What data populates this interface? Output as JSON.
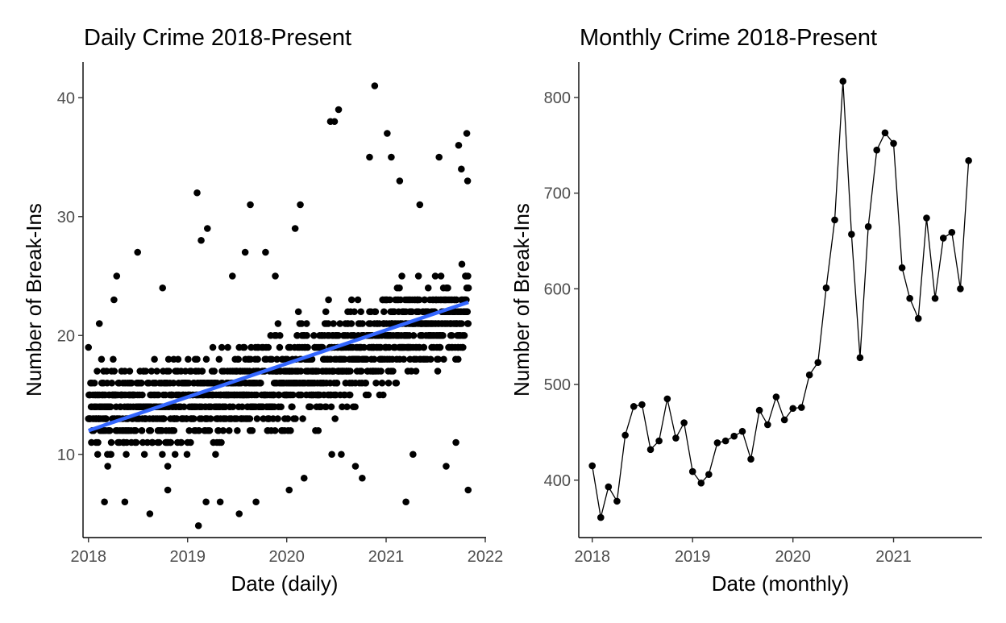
{
  "chart_data": [
    {
      "type": "scatter",
      "title": "Daily Crime 2018-Present",
      "xlabel": "Date (daily)",
      "ylabel": "Number of Break-Ins",
      "xlim": [
        "2017-12-12",
        "2022-01-04"
      ],
      "ylim": [
        3,
        43
      ],
      "x_ticks": [
        "2018",
        "2019",
        "2020",
        "2021",
        "2022"
      ],
      "y_ticks": [
        10,
        20,
        30,
        40
      ],
      "grid": false,
      "legend": "none",
      "point_color": "#000000",
      "trend_color": "#3366ff",
      "trend": {
        "x": [
          "2018-01-01",
          "2021-10-31"
        ],
        "y": [
          12.0,
          22.8
        ]
      },
      "series": [
        {
          "period_start": "2018-01-01",
          "period_end": "2021-10-31",
          "typical_low": [
            10,
            10,
            11,
            12,
            16,
            18
          ],
          "typical_high": [
            17,
            18,
            19,
            22,
            24,
            26
          ],
          "points": [
            [
              "2018-01-01",
              19
            ],
            [
              "2018-02-10",
              21
            ],
            [
              "2018-03-01",
              6
            ],
            [
              "2018-04-05",
              23
            ],
            [
              "2018-04-15",
              25
            ],
            [
              "2018-05-15",
              6
            ],
            [
              "2018-07-01",
              27
            ],
            [
              "2018-08-15",
              5
            ],
            [
              "2018-10-01",
              24
            ],
            [
              "2018-10-20",
              7
            ],
            [
              "2019-02-05",
              32
            ],
            [
              "2019-02-10",
              4
            ],
            [
              "2019-02-20",
              28
            ],
            [
              "2019-03-15",
              29
            ],
            [
              "2019-03-10",
              6
            ],
            [
              "2019-05-01",
              6
            ],
            [
              "2019-06-15",
              25
            ],
            [
              "2019-07-10",
              5
            ],
            [
              "2019-08-20",
              31
            ],
            [
              "2019-08-01",
              27
            ],
            [
              "2019-09-10",
              6
            ],
            [
              "2019-10-15",
              27
            ],
            [
              "2019-11-20",
              25
            ],
            [
              "2020-01-10",
              7
            ],
            [
              "2020-02-01",
              29
            ],
            [
              "2020-02-20",
              31
            ],
            [
              "2020-03-05",
              8
            ],
            [
              "2020-06-10",
              38
            ],
            [
              "2020-06-25",
              38
            ],
            [
              "2020-07-10",
              39
            ],
            [
              "2020-07-20",
              10
            ],
            [
              "2020-06-15",
              10
            ],
            [
              "2020-09-10",
              9
            ],
            [
              "2020-10-05",
              8
            ],
            [
              "2020-11-01",
              35
            ],
            [
              "2020-11-20",
              41
            ],
            [
              "2021-01-05",
              37
            ],
            [
              "2021-01-20",
              35
            ],
            [
              "2021-02-20",
              33
            ],
            [
              "2021-03-15",
              6
            ],
            [
              "2021-04-10",
              10
            ],
            [
              "2021-05-05",
              31
            ],
            [
              "2021-07-15",
              35
            ],
            [
              "2021-08-10",
              9
            ],
            [
              "2021-09-25",
              36
            ],
            [
              "2021-10-05",
              34
            ],
            [
              "2021-10-25",
              37
            ],
            [
              "2021-10-28",
              33
            ],
            [
              "2021-10-30",
              7
            ],
            [
              "2021-09-15",
              11
            ]
          ]
        }
      ]
    },
    {
      "type": "line",
      "title": "Monthly Crime 2018-Present",
      "xlabel": "Date (monthly)",
      "ylabel": "Number of Break-Ins",
      "xlim": [
        "2017-11-13",
        "2021-11-18"
      ],
      "ylim": [
        340,
        837
      ],
      "x_ticks": [
        "2018",
        "2019",
        "2020",
        "2021"
      ],
      "y_ticks": [
        400,
        500,
        600,
        700,
        800
      ],
      "grid": false,
      "legend": "none",
      "line_color": "#000000",
      "x": [
        "2018-01",
        "2018-02",
        "2018-03",
        "2018-04",
        "2018-05",
        "2018-06",
        "2018-07",
        "2018-08",
        "2018-09",
        "2018-10",
        "2018-11",
        "2018-12",
        "2019-01",
        "2019-02",
        "2019-03",
        "2019-04",
        "2019-05",
        "2019-06",
        "2019-07",
        "2019-08",
        "2019-09",
        "2019-10",
        "2019-11",
        "2019-12",
        "2020-01",
        "2020-02",
        "2020-03",
        "2020-04",
        "2020-05",
        "2020-06",
        "2020-07",
        "2020-08",
        "2020-09",
        "2020-10",
        "2020-11",
        "2020-12",
        "2021-01",
        "2021-02",
        "2021-03",
        "2021-04",
        "2021-05",
        "2021-06",
        "2021-07",
        "2021-08",
        "2021-09",
        "2021-10"
      ],
      "values": [
        415,
        361,
        393,
        378,
        447,
        477,
        479,
        432,
        441,
        485,
        444,
        460,
        409,
        397,
        406,
        439,
        441,
        446,
        451,
        422,
        473,
        458,
        487,
        463,
        475,
        476,
        510,
        523,
        601,
        672,
        817,
        657,
        528,
        665,
        745,
        763,
        752,
        622,
        590,
        569,
        674,
        590,
        653,
        659,
        600,
        734
      ]
    }
  ]
}
